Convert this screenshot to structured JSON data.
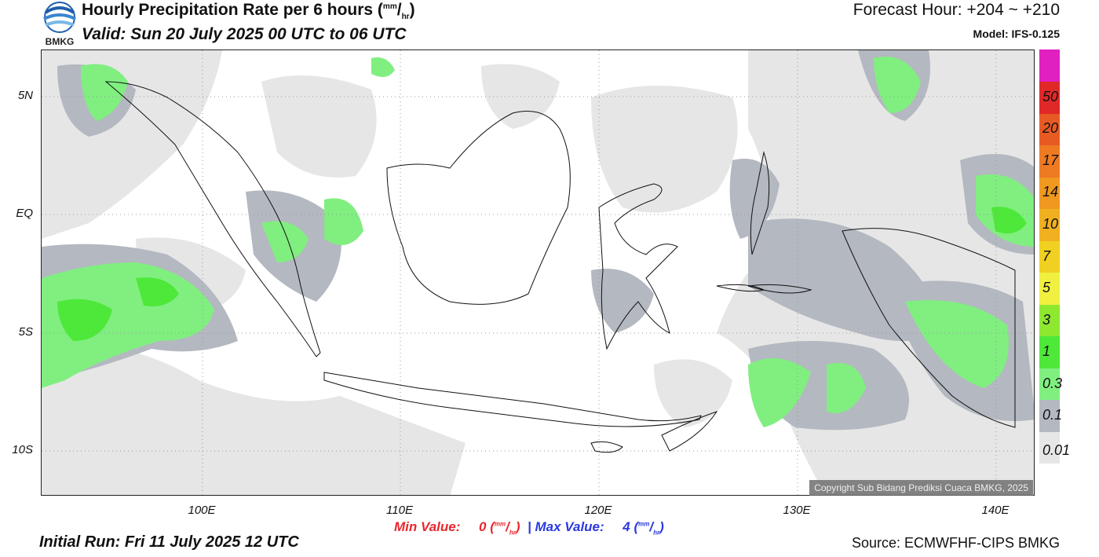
{
  "header": {
    "title": "Hourly Precipitation Rate per 6 hours",
    "title_unit_num": "mm",
    "title_unit_den": "hr",
    "valid": "Valid: Sun 20 July 2025 00 UTC to 06 UTC",
    "forecast_hour": "Forecast Hour: +204 ~ +210",
    "model": "Model: IFS-0.125",
    "logo_text": "BMKG"
  },
  "map": {
    "lat_labels": [
      {
        "text": "5N",
        "lat": 5
      },
      {
        "text": "EQ",
        "lat": 0
      },
      {
        "text": "5S",
        "lat": -5
      },
      {
        "text": "10S",
        "lat": -10
      }
    ],
    "lon_labels": [
      {
        "text": "100E",
        "lon": 100
      },
      {
        "text": "110E",
        "lon": 110
      },
      {
        "text": "120E",
        "lon": 120
      },
      {
        "text": "130E",
        "lon": 130
      },
      {
        "text": "140E",
        "lon": 140
      }
    ],
    "copyright": "Copyright Sub Bidang Prediksi Cuaca BMKG, 2025"
  },
  "legend": {
    "levels": [
      {
        "label": "0.01",
        "color": "#e6e6e6"
      },
      {
        "label": "0.1",
        "color": "#b4b8c0"
      },
      {
        "label": "0.3",
        "color": "#80ef80"
      },
      {
        "label": "1",
        "color": "#4ee83a"
      },
      {
        "label": "3",
        "color": "#8ee830"
      },
      {
        "label": "5",
        "color": "#f0f040"
      },
      {
        "label": "7",
        "color": "#f0d020"
      },
      {
        "label": "10",
        "color": "#f0b020"
      },
      {
        "label": "14",
        "color": "#f09820"
      },
      {
        "label": "17",
        "color": "#ee7a22"
      },
      {
        "label": "20",
        "color": "#e85a24"
      },
      {
        "label": "50",
        "color": "#e02828"
      },
      {
        "label": "",
        "color": "#e020c0"
      }
    ]
  },
  "stats": {
    "min_label": "Min Value:",
    "min_value": "0",
    "separator": "|",
    "max_label": "Max Value:",
    "max_value": "4",
    "unit_num": "mm",
    "unit_den": "hr"
  },
  "footer": {
    "initial_run": "Initial Run: Fri 11 July 2025 12 UTC",
    "source": "Source: ECMWFHF-CIPS BMKG"
  }
}
